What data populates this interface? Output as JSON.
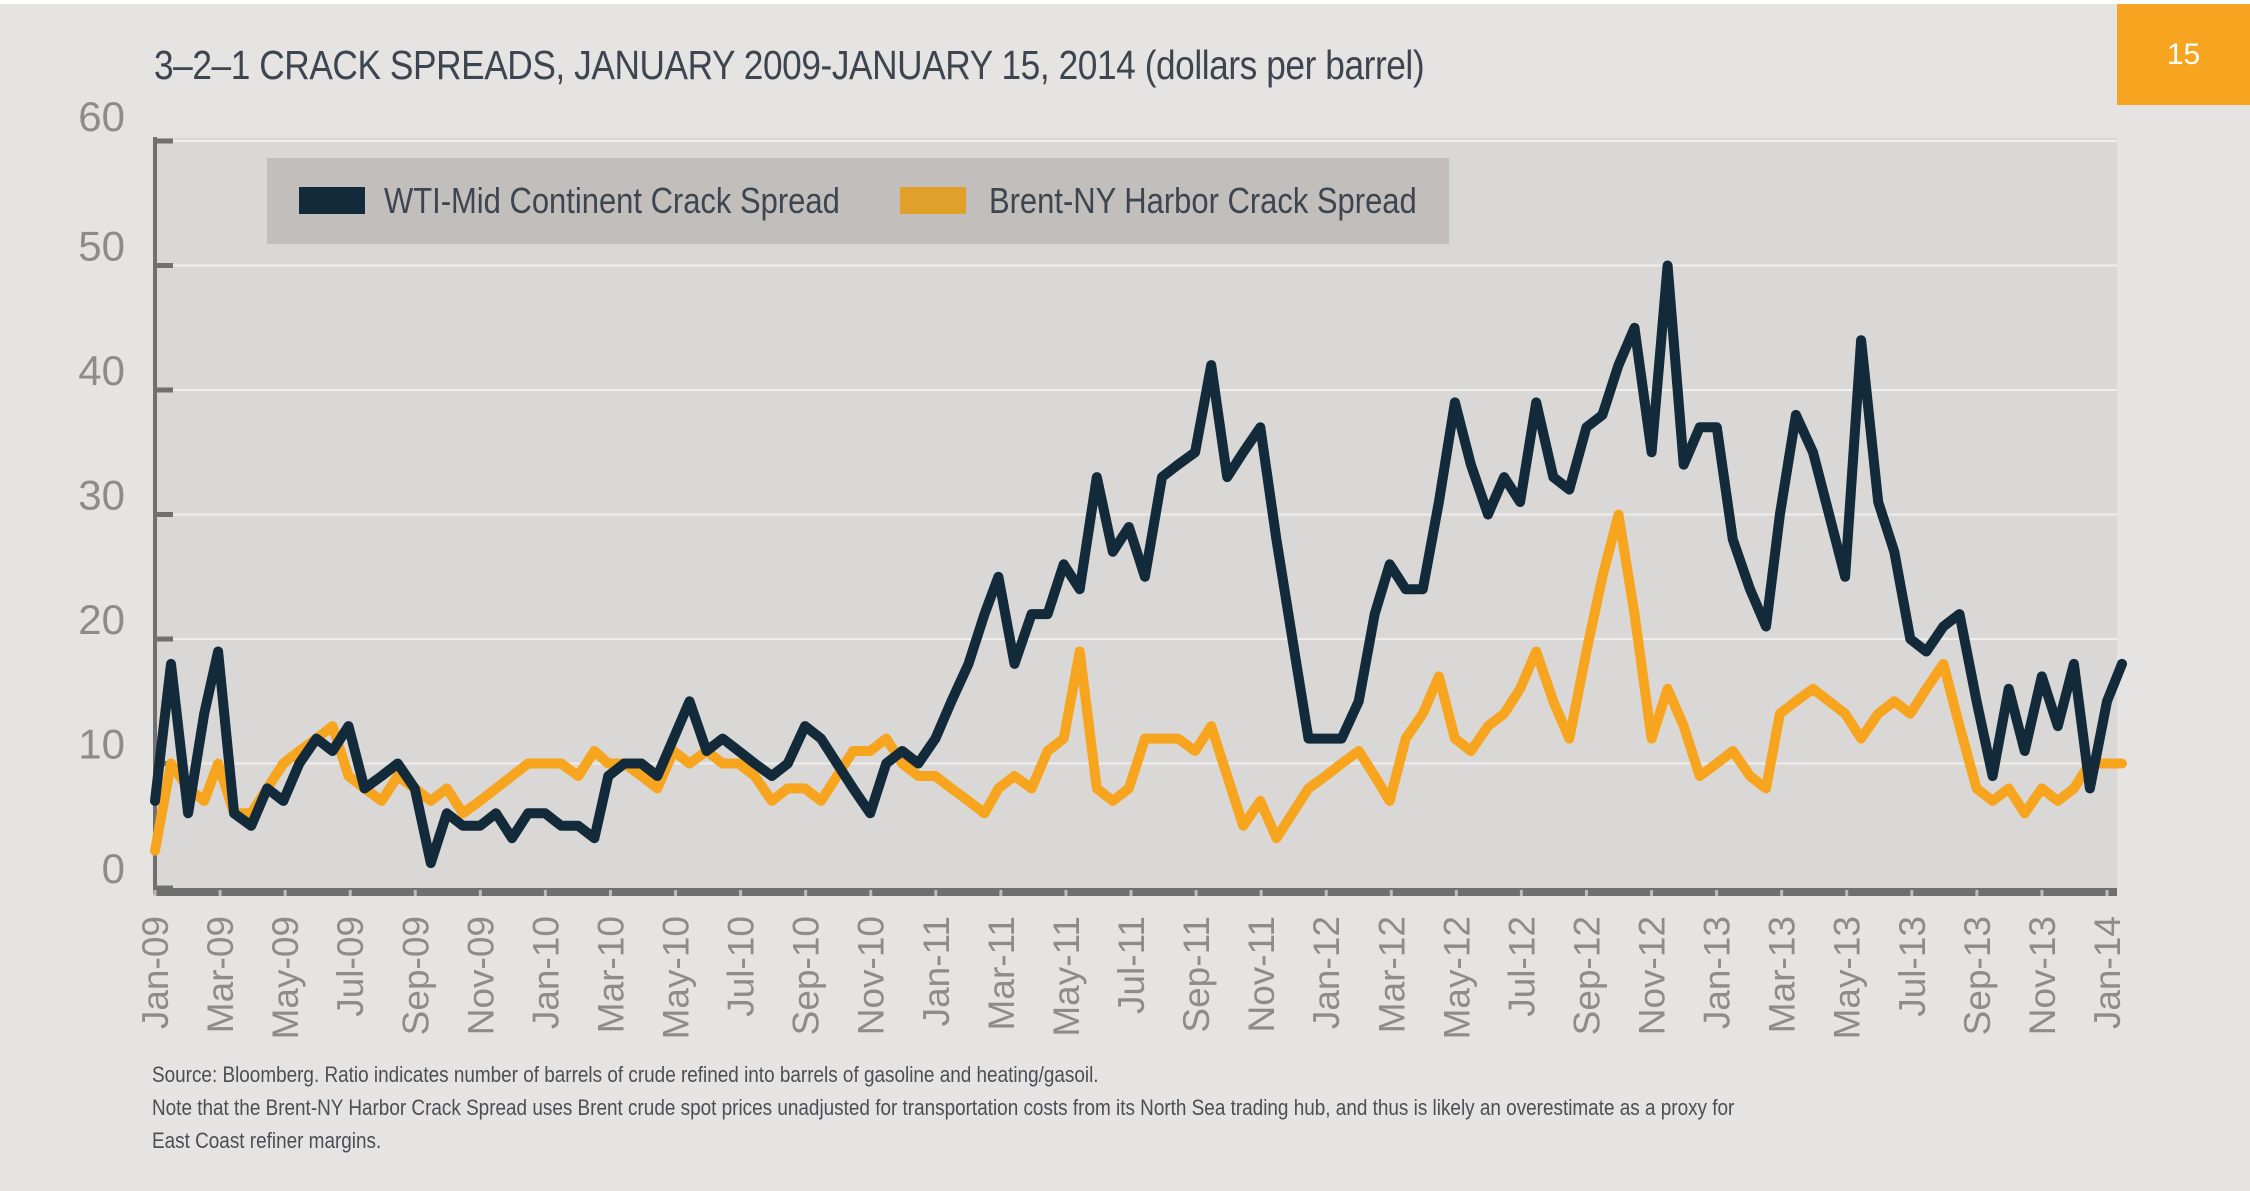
{
  "page_number": "15",
  "colors": {
    "wti": "#132a3a",
    "brent": "#f7a51f",
    "legend_brent_swatch": "#e0a02a",
    "badge": "#f7a520",
    "plot_bg": "#d9d8d6",
    "legend_bg": "#c1bebc"
  },
  "footnotes": [
    "Source: Bloomberg. Ratio indicates number of barrels of crude refined into barrels of gasoline and heating/gasoil.",
    "Note that the Brent-NY Harbor Crack Spread uses Brent crude spot prices unadjusted for transportation costs from its North Sea trading hub, and thus is likely an overestimate as a proxy for",
    "East Coast refiner margins."
  ],
  "chart_data": {
    "type": "line",
    "title": "3–2–1 CRACK SPREADS, JANUARY 2009-JANUARY 15, 2014",
    "title_unit": "(dollars per barrel)",
    "xlabel": "",
    "ylabel": "",
    "ylim": [
      0,
      60
    ],
    "yticks": [
      "0",
      "10",
      "20",
      "30",
      "40",
      "50",
      "60"
    ],
    "xticks": [
      "Jan-09",
      "Mar-09",
      "May-09",
      "Jul-09",
      "Sep-09",
      "Nov-09",
      "Jan-10",
      "Mar-10",
      "May-10",
      "Jul-10",
      "Sep-10",
      "Nov-10",
      "Jan-11",
      "Mar-11",
      "May-11",
      "Jul-11",
      "Sep-11",
      "Nov-11",
      "Jan-12",
      "Mar-12",
      "May-12",
      "Jul-12",
      "Sep-12",
      "Nov-12",
      "Jan-13",
      "Mar-13",
      "May-13",
      "Jul-13",
      "Sep-13",
      "Nov-13",
      "Jan-14"
    ],
    "grid": true,
    "legend_placement": "top-left",
    "x": [
      "2009-01-01",
      "2009-01-16",
      "2009-02-01",
      "2009-02-16",
      "2009-03-01",
      "2009-03-16",
      "2009-04-01",
      "2009-04-16",
      "2009-05-01",
      "2009-05-16",
      "2009-06-01",
      "2009-06-16",
      "2009-07-01",
      "2009-07-16",
      "2009-08-01",
      "2009-08-16",
      "2009-09-01",
      "2009-09-16",
      "2009-10-01",
      "2009-10-16",
      "2009-11-01",
      "2009-11-16",
      "2009-12-01",
      "2009-12-16",
      "2010-01-01",
      "2010-01-16",
      "2010-02-01",
      "2010-02-16",
      "2010-03-01",
      "2010-03-16",
      "2010-04-01",
      "2010-04-16",
      "2010-05-01",
      "2010-05-16",
      "2010-06-01",
      "2010-06-16",
      "2010-07-01",
      "2010-07-16",
      "2010-08-01",
      "2010-08-16",
      "2010-09-01",
      "2010-09-16",
      "2010-10-01",
      "2010-10-16",
      "2010-11-01",
      "2010-11-16",
      "2010-12-01",
      "2010-12-16",
      "2011-01-01",
      "2011-01-16",
      "2011-02-01",
      "2011-02-16",
      "2011-03-01",
      "2011-03-16",
      "2011-04-01",
      "2011-04-16",
      "2011-05-01",
      "2011-05-16",
      "2011-06-01",
      "2011-06-16",
      "2011-07-01",
      "2011-07-16",
      "2011-08-01",
      "2011-08-16",
      "2011-09-01",
      "2011-09-16",
      "2011-10-01",
      "2011-10-16",
      "2011-11-01",
      "2011-11-16",
      "2011-12-01",
      "2011-12-16",
      "2012-01-01",
      "2012-01-16",
      "2012-02-01",
      "2012-02-16",
      "2012-03-01",
      "2012-03-16",
      "2012-04-01",
      "2012-04-16",
      "2012-05-01",
      "2012-05-16",
      "2012-06-01",
      "2012-06-16",
      "2012-07-01",
      "2012-07-16",
      "2012-08-01",
      "2012-08-16",
      "2012-09-01",
      "2012-09-16",
      "2012-10-01",
      "2012-10-16",
      "2012-11-01",
      "2012-11-16",
      "2012-12-01",
      "2012-12-16",
      "2013-01-01",
      "2013-01-16",
      "2013-02-01",
      "2013-02-16",
      "2013-03-01",
      "2013-03-16",
      "2013-04-01",
      "2013-04-16",
      "2013-05-01",
      "2013-05-16",
      "2013-06-01",
      "2013-06-16",
      "2013-07-01",
      "2013-07-16",
      "2013-08-01",
      "2013-08-16",
      "2013-09-01",
      "2013-09-16",
      "2013-10-01",
      "2013-10-16",
      "2013-11-01",
      "2013-11-16",
      "2013-12-01",
      "2013-12-16",
      "2014-01-01",
      "2014-01-15"
    ],
    "series": [
      {
        "name": "WTI-Mid Continent Crack Spread",
        "color": "#132a3a",
        "values": [
          7,
          18,
          6,
          14,
          19,
          6,
          5,
          8,
          7,
          10,
          12,
          11,
          13,
          8,
          9,
          10,
          8,
          2,
          6,
          5,
          5,
          6,
          4,
          6,
          6,
          5,
          5,
          4,
          9,
          10,
          10,
          9,
          12,
          15,
          11,
          12,
          11,
          10,
          9,
          10,
          13,
          12,
          10,
          8,
          6,
          10,
          11,
          10,
          12,
          15,
          18,
          22,
          25,
          18,
          22,
          22,
          26,
          24,
          33,
          27,
          29,
          25,
          33,
          34,
          35,
          42,
          33,
          35,
          37,
          28,
          20,
          12,
          12,
          12,
          15,
          22,
          26,
          24,
          24,
          31,
          39,
          34,
          30,
          33,
          31,
          39,
          33,
          32,
          37,
          38,
          42,
          45,
          35,
          50,
          34,
          37,
          37,
          28,
          24,
          21,
          30,
          38,
          35,
          30,
          25,
          44,
          31,
          27,
          20,
          19,
          21,
          22,
          15,
          9,
          16,
          11,
          17,
          13,
          18,
          8,
          15,
          18
        ]
      },
      {
        "name": "Brent-NY Harbor Crack Spread",
        "color": "#f7a51f",
        "values": [
          3,
          10,
          8,
          7,
          10,
          6,
          6,
          8,
          10,
          11,
          12,
          13,
          9,
          8,
          7,
          9,
          8,
          7,
          8,
          6,
          7,
          8,
          9,
          10,
          10,
          10,
          9,
          11,
          10,
          10,
          9,
          8,
          11,
          10,
          11,
          10,
          10,
          9,
          7,
          8,
          8,
          7,
          9,
          11,
          11,
          12,
          10,
          9,
          9,
          8,
          7,
          6,
          8,
          9,
          8,
          11,
          12,
          19,
          8,
          7,
          8,
          12,
          12,
          12,
          11,
          13,
          9,
          5,
          7,
          4,
          6,
          8,
          9,
          10,
          11,
          9,
          7,
          12,
          14,
          17,
          12,
          11,
          13,
          14,
          16,
          19,
          15,
          12,
          19,
          25,
          30,
          22,
          12,
          16,
          13,
          9,
          10,
          11,
          9,
          8,
          14,
          15,
          16,
          15,
          14,
          12,
          14,
          15,
          14,
          16,
          18,
          13,
          8,
          7,
          8,
          6,
          8,
          7,
          8,
          10,
          10,
          10
        ]
      }
    ]
  }
}
